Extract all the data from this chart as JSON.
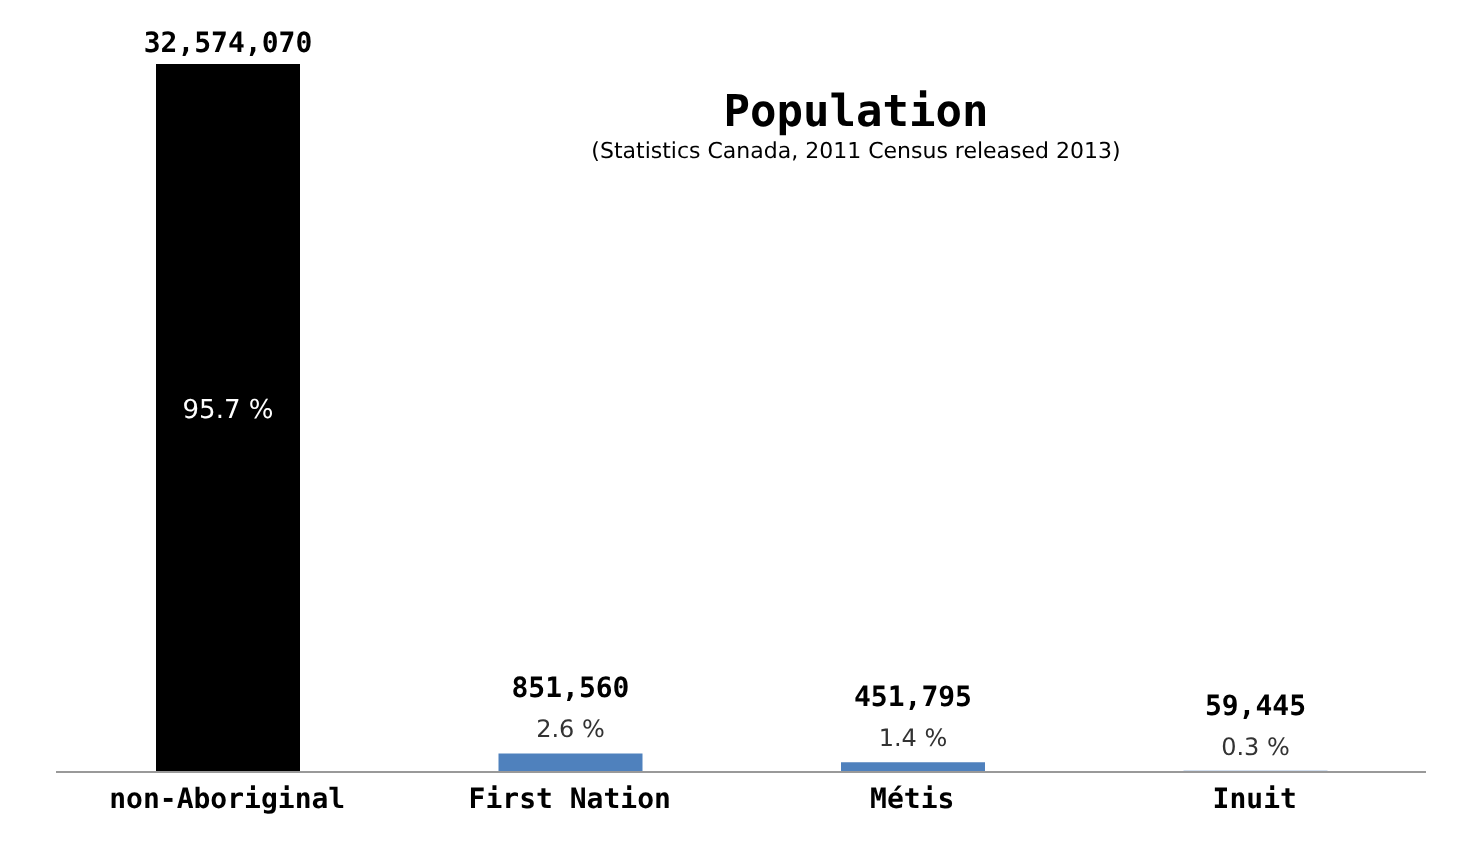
{
  "chart_data": {
    "type": "bar",
    "title": "Population",
    "subtitle": "(Statistics Canada, 2011 Census released 2013)",
    "categories": [
      "non-Aboriginal",
      "First Nation",
      "Métis",
      "Inuit"
    ],
    "values": [
      32574070,
      851560,
      451795,
      59445
    ],
    "colors": [
      "#000000",
      "#4f81bd",
      "#4f81bd",
      "#4f81bd"
    ],
    "value_labels": [
      "32,574,070",
      "851,560",
      "451,795",
      "59,445"
    ],
    "annotations": [
      "95.7 %",
      "2.6 %",
      "1.4 %",
      "0.3 %"
    ],
    "grid": false,
    "legend": false
  }
}
